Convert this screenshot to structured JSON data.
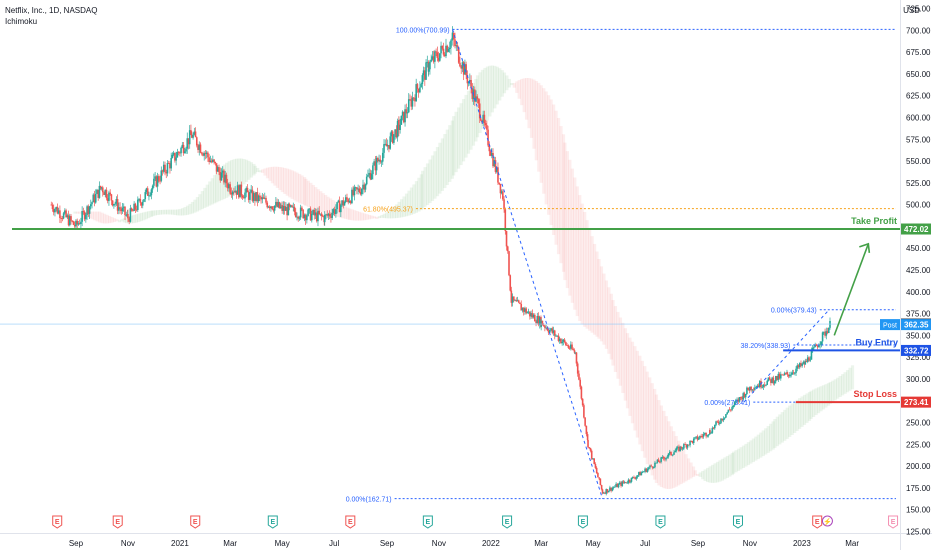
{
  "header": {
    "symbol_line": "Netflix, Inc., 1D, NASDAQ",
    "indicator": "Ichimoku"
  },
  "currency": "USD",
  "colors": {
    "up": "#26a69a",
    "down": "#ef5350",
    "fib": "#2962ff",
    "fib618": "#f7a21b",
    "green": "#43a047",
    "blue": "#1e53e5",
    "red": "#e53935",
    "post": "#2196f3"
  },
  "chart_data": {
    "type": "line",
    "title": "",
    "ylim": [
      125,
      725
    ],
    "y_ticks": [
      "725.00",
      "700.00",
      "675.00",
      "650.00",
      "625.00",
      "600.00",
      "575.00",
      "550.00",
      "525.00",
      "500.00",
      "475.00",
      "450.00",
      "425.00",
      "400.00",
      "375.00",
      "350.00",
      "325.00",
      "300.00",
      "275.00",
      "250.00",
      "225.00",
      "200.00",
      "175.00",
      "150.00",
      "125.00"
    ],
    "x_ticks": [
      "Sep",
      "Nov",
      "2021",
      "Mar",
      "May",
      "Jul",
      "Sep",
      "Nov",
      "2022",
      "Mar",
      "May",
      "Jul",
      "Sep",
      "Nov",
      "2023",
      "Mar"
    ],
    "series_price_path": [
      [
        "2020-08-03",
        500
      ],
      [
        "2020-09-01",
        475
      ],
      [
        "2020-10-01",
        520
      ],
      [
        "2020-11-01",
        485
      ],
      [
        "2021-01-15",
        580
      ],
      [
        "2021-03-01",
        520
      ],
      [
        "2021-05-01",
        495
      ],
      [
        "2021-06-20",
        485
      ],
      [
        "2021-08-01",
        518
      ],
      [
        "2021-09-15",
        590
      ],
      [
        "2021-10-20",
        660
      ],
      [
        "2021-11-17",
        690
      ],
      [
        "2021-12-20",
        605
      ],
      [
        "2022-01-15",
        510
      ],
      [
        "2022-01-25",
        390
      ],
      [
        "2022-03-01",
        365
      ],
      [
        "2022-04-10",
        330
      ],
      [
        "2022-04-25",
        225
      ],
      [
        "2022-05-12",
        170
      ],
      [
        "2022-06-15",
        185
      ],
      [
        "2022-08-01",
        215
      ],
      [
        "2022-09-15",
        240
      ],
      [
        "2022-11-01",
        290
      ],
      [
        "2022-12-15",
        305
      ],
      [
        "2023-01-05",
        318
      ],
      [
        "2023-02-03",
        362
      ]
    ],
    "fib_levels": [
      {
        "label": "100.00%(700.99)",
        "value": 700.99
      },
      {
        "label": "61.80%(495.37)",
        "value": 495.37
      },
      {
        "label": "38.20%(338.93)",
        "value": 338.93
      },
      {
        "label": "0.00%(379.43)",
        "value": 379.43
      },
      {
        "label": "0.00%(273.41)",
        "value": 273.41
      },
      {
        "label": "0.00%(162.71)",
        "value": 162.71
      }
    ],
    "annotations": [
      {
        "label": "Take Profit",
        "value": 472.02,
        "tag": "472.02"
      },
      {
        "label": "Buy Entry",
        "value": 332.72,
        "tag": "332.72"
      },
      {
        "label": "Stop Loss",
        "value": 273.41,
        "tag": "273.41"
      }
    ],
    "last_price": {
      "value": 362.95,
      "tag": "362.95"
    },
    "post_price": {
      "label": "Post",
      "value": 362.35,
      "tag": "362.35"
    },
    "earnings_markers": [
      {
        "date": "2020-08-10",
        "symbol": "E",
        "color": "red"
      },
      {
        "date": "2020-10-20",
        "symbol": "E",
        "color": "red"
      },
      {
        "date": "2021-01-19",
        "symbol": "E",
        "color": "red"
      },
      {
        "date": "2021-04-20",
        "symbol": "E",
        "color": "green"
      },
      {
        "date": "2021-07-20",
        "symbol": "E",
        "color": "red"
      },
      {
        "date": "2021-10-19",
        "symbol": "E",
        "color": "green"
      },
      {
        "date": "2022-01-20",
        "symbol": "E",
        "color": "green"
      },
      {
        "date": "2022-04-19",
        "symbol": "E",
        "color": "green"
      },
      {
        "date": "2022-07-19",
        "symbol": "E",
        "color": "green"
      },
      {
        "date": "2022-10-18",
        "symbol": "E",
        "color": "green"
      },
      {
        "date": "2023-01-19",
        "symbol": "E",
        "color": "red"
      },
      {
        "date": "2023-01-31",
        "symbol": "⚡",
        "color": "purple"
      },
      {
        "date": "2023-04-18",
        "symbol": "E",
        "color": "pink"
      }
    ]
  }
}
